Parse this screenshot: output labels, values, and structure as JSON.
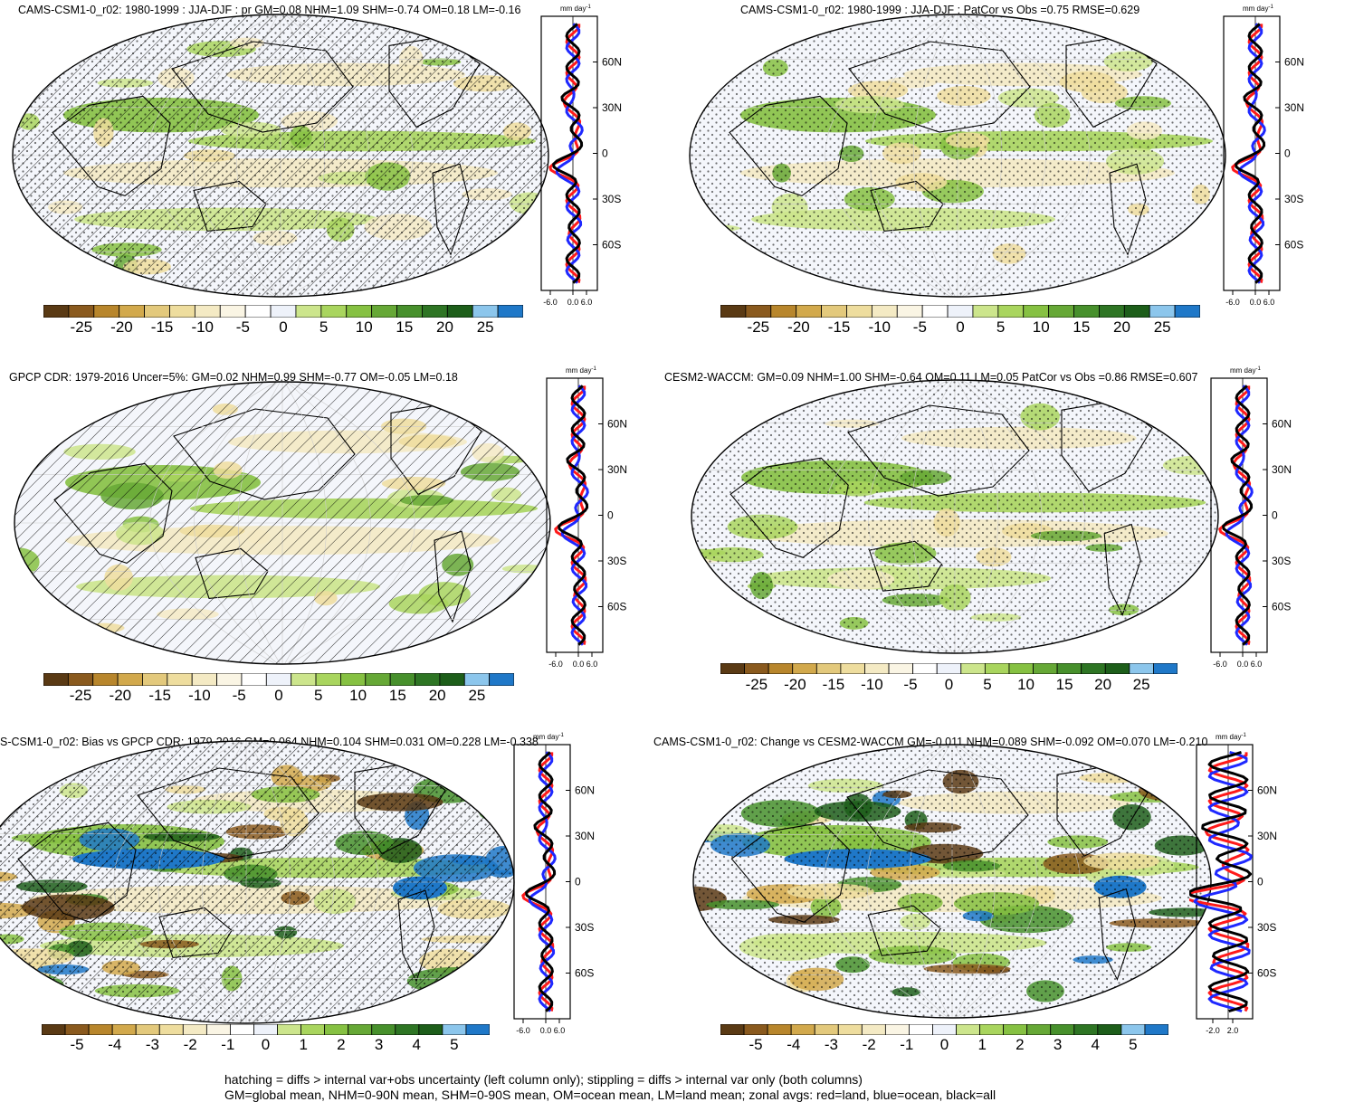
{
  "panels": [
    {
      "title": "CAMS-CSM1-0_r02: 1980-1999 : JJA-DJF : pr GM=0.08 NHM=1.09 SHM=-0.74 OM=0.18 LM=-0.16",
      "hatch": true,
      "stipple": true,
      "variant": 0,
      "units": "mm day-1",
      "zonal_ticks": [
        "-6.0",
        "0.0",
        "6.0"
      ],
      "lat_ticks": [
        "60N",
        "30N",
        "0",
        "30S",
        "60S"
      ],
      "cbar_labels": [
        "-25",
        "-20",
        "-15",
        "-10",
        "-5",
        "0",
        "5",
        "10",
        "15",
        "20",
        "25"
      ]
    },
    {
      "title": "CAMS-CSM1-0_r02: 1980-1999 : JJA-DJF : PatCor vs Obs =0.75 RMSE=0.629",
      "hatch": false,
      "stipple": true,
      "variant": 1,
      "units": "mm day-1",
      "zonal_ticks": [
        "-6.0",
        "0.0",
        "6.0"
      ],
      "lat_ticks": [
        "60N",
        "30N",
        "0",
        "30S",
        "60S"
      ],
      "cbar_labels": [
        "-25",
        "-20",
        "-15",
        "-10",
        "-5",
        "0",
        "5",
        "10",
        "15",
        "20",
        "25"
      ]
    },
    {
      "title": "GPCP CDR: 1979-2016 Uncer=5%: GM=0.02 NHM=0.99 SHM=-0.77 OM=-0.05 LM=0.18",
      "hatch": true,
      "stipple": false,
      "variant": 2,
      "units": "mm day-1",
      "zonal_ticks": [
        "-6.0",
        "0.0",
        "6.0"
      ],
      "lat_ticks": [
        "60N",
        "30N",
        "0",
        "30S",
        "60S"
      ],
      "cbar_labels": [
        "-25",
        "-20",
        "-15",
        "-10",
        "-5",
        "0",
        "5",
        "10",
        "15",
        "20",
        "25"
      ]
    },
    {
      "title": "CESM2-WACCM: GM=0.09 NHM=1.00 SHM=-0.64 OM=0.11 LM=0.05 PatCor vs Obs =0.86 RMSE=0.607",
      "hatch": false,
      "stipple": true,
      "variant": 3,
      "units": "mm day-1",
      "zonal_ticks": [
        "-6.0",
        "0.0",
        "6.0"
      ],
      "lat_ticks": [
        "60N",
        "30N",
        "0",
        "30S",
        "60S"
      ],
      "cbar_labels": [
        "-25",
        "-20",
        "-15",
        "-10",
        "-5",
        "0",
        "5",
        "10",
        "15",
        "20",
        "25"
      ]
    },
    {
      "title": "S-CSM1-0_r02: Bias vs GPCP CDR: 1979-2016 GM=0.064 NHM=0.104 SHM=0.031 OM=0.228 LM=-0.338",
      "hatch": true,
      "stipple": true,
      "variant": 4,
      "units": "mm day-1",
      "zonal_ticks": [
        "-6.0",
        "0.0",
        "6.0"
      ],
      "lat_ticks": [
        "60N",
        "30N",
        "0",
        "30S",
        "60S"
      ],
      "cbar_labels": [
        "-5",
        "-4",
        "-3",
        "-2",
        "-1",
        "0",
        "1",
        "2",
        "3",
        "4",
        "5"
      ]
    },
    {
      "title": "CAMS-CSM1-0_r02: Change vs CESM2-WACCM GM=-0.011 NHM=0.089 SHM=-0.092 OM=0.070 LM=-0.210",
      "hatch": false,
      "stipple": true,
      "variant": 5,
      "units": "mm day-1",
      "zonal_ticks": [
        "-2.0",
        "2.0"
      ],
      "lat_ticks": [
        "60N",
        "30N",
        "0",
        "30S",
        "60S"
      ],
      "cbar_labels": [
        "-5",
        "-4",
        "-3",
        "-2",
        "-1",
        "0",
        "1",
        "2",
        "3",
        "4",
        "5"
      ]
    }
  ],
  "colors": {
    "palette": [
      "#5a3a14",
      "#8a5a1e",
      "#b8862c",
      "#d2a94c",
      "#e3c97c",
      "#eedd9e",
      "#f4eac4",
      "#faf5e4",
      "#ffffff",
      "#eef2fa",
      "#cce58c",
      "#a9d55e",
      "#86c142",
      "#66a836",
      "#47902c",
      "#2e7524",
      "#1d5e1a",
      "#8cc6ec",
      "#1f78c8"
    ],
    "land_line": "#ff1a1a",
    "ocean_line": "#1e28ff",
    "all_line": "#000000"
  },
  "footer": {
    "line1": "hatching = diffs > internal var+obs uncertainty (left column only); stippling = diffs > internal var only (both columns)",
    "line2": "GM=global mean, NHM=0-90N mean, SHM=0-90S mean, OM=ocean mean, LM=land mean; zonal avgs: red=land, blue=ocean, black=all"
  }
}
